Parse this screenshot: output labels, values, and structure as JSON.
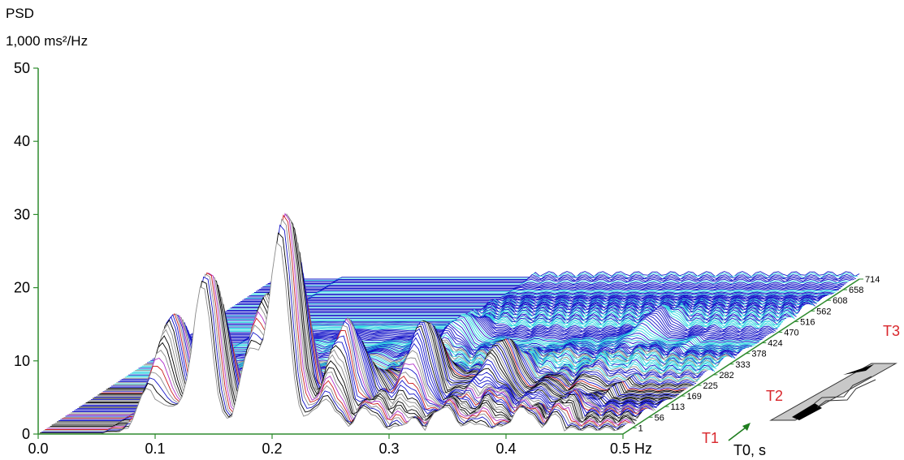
{
  "chart_data": {
    "type": "3d-surface",
    "y_title_line1": "PSD",
    "y_title_line2": "1,000 ms²/Hz",
    "ylim": [
      0,
      50
    ],
    "y_ticks": [
      "0",
      "10",
      "20",
      "30",
      "40",
      "50"
    ],
    "y_tick_values": [
      0,
      10,
      20,
      30,
      40,
      50
    ],
    "xlim": [
      0.0,
      0.5
    ],
    "x_ticks": [
      "0.0",
      "0.1",
      "0.2",
      "0.3",
      "0.4"
    ],
    "x_tick_values": [
      0.0,
      0.1,
      0.2,
      0.3,
      0.4
    ],
    "x_end_label": "0.5 Hz",
    "x_end_value": 0.5,
    "depth_ticks": [
      "1",
      "56",
      "113",
      "169",
      "225",
      "282",
      "333",
      "378",
      "424",
      "470",
      "516",
      "562",
      "608",
      "658",
      "714"
    ],
    "depth_label": "T0, s",
    "phase_labels": [
      "T1",
      "T2",
      "T3"
    ],
    "peaks": [
      {
        "f": 0.095,
        "t": 0.1,
        "h": 14.0
      },
      {
        "f": 0.14,
        "t": 0.02,
        "h": 20.0
      },
      {
        "f": 0.205,
        "t": 0.03,
        "h": 27.0
      },
      {
        "f": 0.18,
        "t": 0.08,
        "h": 16.0
      },
      {
        "f": 0.24,
        "t": 0.12,
        "h": 11.0
      },
      {
        "f": 0.29,
        "t": 0.2,
        "h": 9.0
      },
      {
        "f": 0.345,
        "t": 0.24,
        "h": 7.0
      },
      {
        "f": 0.25,
        "t": 0.55,
        "h": 4.0
      },
      {
        "f": 0.4,
        "t": 0.62,
        "h": 3.0
      }
    ],
    "colors": {
      "axis": "#2e8b2e",
      "fill_low": "#1414c8",
      "trace_cyan": "#2fd6e0",
      "trace_red": "#c81e1e",
      "trace_magenta": "#b030c8",
      "trace_gray": "#8a8a8a",
      "trace_black": "#000000",
      "phase_label": "#d9262b"
    }
  }
}
